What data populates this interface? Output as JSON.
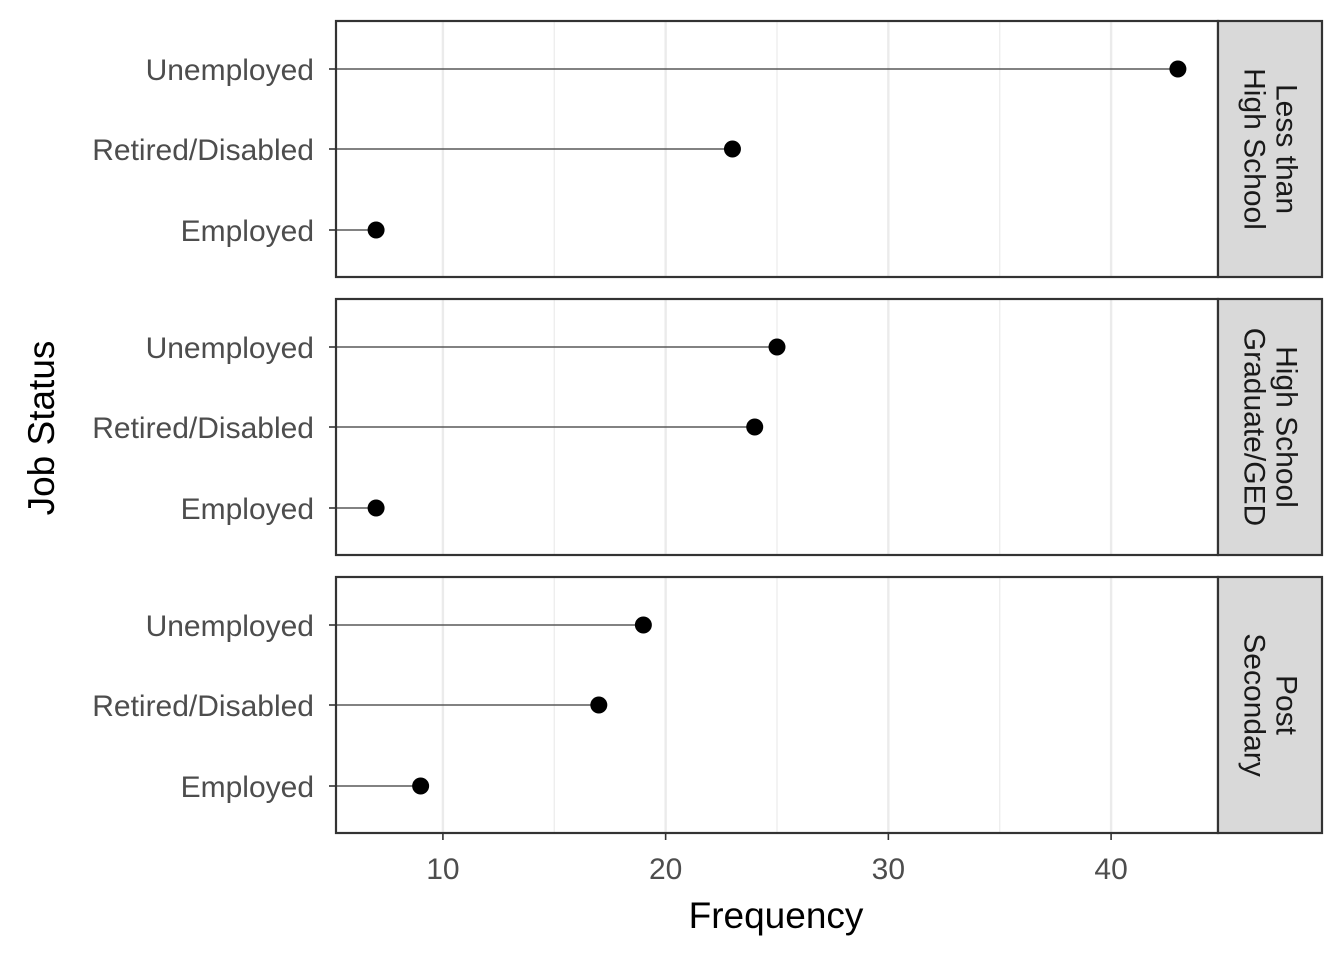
{
  "chart_data": {
    "type": "lollipop",
    "xlabel": "Frequency",
    "ylabel": "Job Status",
    "xlim": [
      5.2,
      44.8
    ],
    "x_major_ticks": [
      10,
      20,
      30,
      40
    ],
    "x_minor_ticks": [
      15,
      25,
      35
    ],
    "categories": [
      "Unemployed",
      "Retired/Disabled",
      "Employed"
    ],
    "grid": "vertical",
    "colors": {
      "point": "#000000",
      "segment": "#595959",
      "grid": "#ebebeb",
      "strip_fill": "#d9d9d9",
      "border": "#333333"
    },
    "panels": [
      {
        "strip_lines": [
          "Less than",
          "High School"
        ],
        "values": {
          "Unemployed": 43,
          "Retired/Disabled": 23,
          "Employed": 7
        }
      },
      {
        "strip_lines": [
          "High School",
          "Graduate/GED"
        ],
        "values": {
          "Unemployed": 25,
          "Retired/Disabled": 24,
          "Employed": 7
        }
      },
      {
        "strip_lines": [
          "Post",
          "Secondary"
        ],
        "values": {
          "Unemployed": 19,
          "Retired/Disabled": 17,
          "Employed": 9
        }
      }
    ]
  }
}
